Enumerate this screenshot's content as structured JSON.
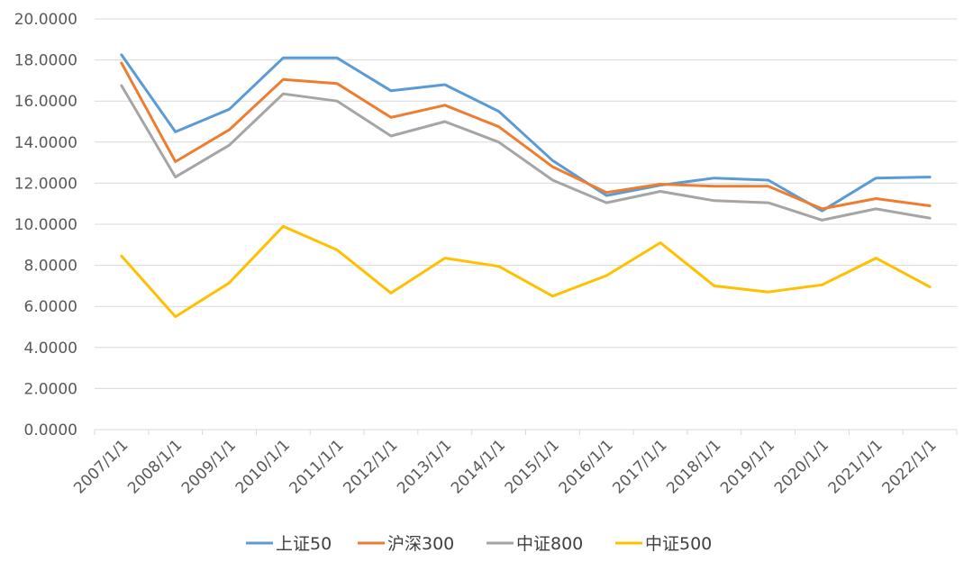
{
  "chart_data": {
    "type": "line",
    "title": "",
    "xlabel": "",
    "ylabel": "",
    "ylim": [
      0,
      20
    ],
    "y_ticks": [
      "0.0000",
      "2.0000",
      "4.0000",
      "6.0000",
      "8.0000",
      "10.0000",
      "12.0000",
      "14.0000",
      "16.0000",
      "18.0000",
      "20.0000"
    ],
    "grid": true,
    "legend_position": "bottom",
    "categories": [
      "2007/1/1",
      "2008/1/1",
      "2009/1/1",
      "2010/1/1",
      "2011/1/1",
      "2012/1/1",
      "2013/1/1",
      "2014/1/1",
      "2015/1/1",
      "2016/1/1",
      "2017/1/1",
      "2018/1/1",
      "2019/1/1",
      "2020/1/1",
      "2021/1/1",
      "2022/1/1"
    ],
    "series": [
      {
        "name": "上证50",
        "color": "#5b9bd5",
        "values": [
          18.25,
          14.5,
          15.6,
          18.1,
          18.1,
          16.5,
          16.8,
          15.5,
          13.1,
          11.4,
          11.9,
          12.25,
          12.15,
          10.65,
          12.25,
          12.3
        ]
      },
      {
        "name": "沪深300",
        "color": "#ed7d31",
        "values": [
          17.85,
          13.05,
          14.6,
          17.05,
          16.85,
          15.2,
          15.8,
          14.75,
          12.8,
          11.55,
          11.95,
          11.85,
          11.85,
          10.75,
          11.25,
          10.9
        ]
      },
      {
        "name": "中证800",
        "color": "#a5a5a5",
        "values": [
          16.75,
          12.3,
          13.85,
          16.35,
          16.0,
          14.3,
          15.0,
          14.0,
          12.15,
          11.05,
          11.6,
          11.15,
          11.05,
          10.2,
          10.75,
          10.3
        ]
      },
      {
        "name": "中证500",
        "color": "#ffc000",
        "values": [
          8.45,
          5.5,
          7.15,
          9.9,
          8.75,
          6.65,
          8.35,
          7.95,
          6.5,
          7.5,
          9.1,
          7.0,
          6.7,
          7.05,
          8.35,
          6.95
        ]
      }
    ]
  }
}
